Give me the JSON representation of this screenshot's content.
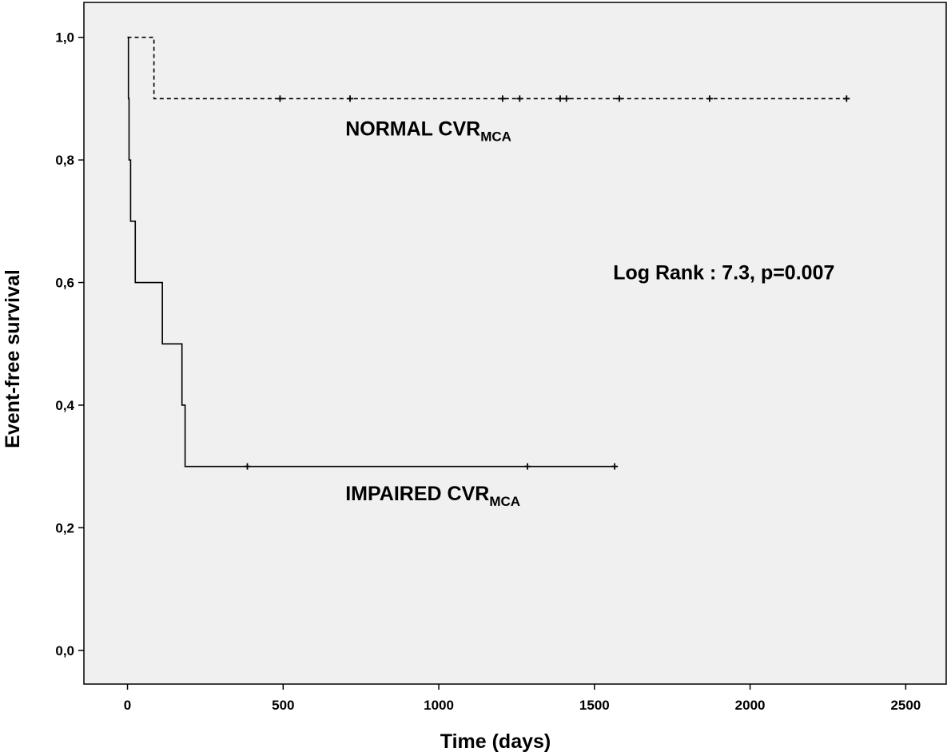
{
  "chart_data": {
    "type": "line",
    "subtype": "kaplan-meier-step",
    "xlabel": "Time (days)",
    "ylabel": "Event-free survival",
    "xlim": [
      -140,
      2630
    ],
    "ylim": [
      -0.055,
      1.057
    ],
    "x_ticks": [
      0,
      500,
      1000,
      1500,
      2000,
      2500
    ],
    "x_tick_labels": [
      "0",
      "500",
      "1000",
      "1500",
      "2000",
      "2500"
    ],
    "y_ticks": [
      0.0,
      0.2,
      0.4,
      0.6,
      0.8,
      1.0
    ],
    "y_tick_labels": [
      "0,0",
      "0,2",
      "0,4",
      "0,6",
      "0,8",
      "1,0"
    ],
    "grid": false,
    "legend": "none",
    "plot_background": "#f0f0f0",
    "series": [
      {
        "name": "NORMAL CVR",
        "name_subscript": "MCA",
        "line_style": "dashed",
        "color": "#000000",
        "steps": [
          [
            0,
            1.0
          ],
          [
            85,
            0.9
          ],
          [
            2310,
            0.9
          ]
        ],
        "censored": [
          [
            490,
            0.9
          ],
          [
            715,
            0.9
          ],
          [
            1205,
            0.9
          ],
          [
            1260,
            0.9
          ],
          [
            1390,
            0.9
          ],
          [
            1410,
            0.9
          ],
          [
            1580,
            0.9
          ],
          [
            1870,
            0.9
          ],
          [
            2310,
            0.9
          ]
        ]
      },
      {
        "name": "IMPAIRED CVR",
        "name_subscript": "MCA",
        "line_style": "solid",
        "color": "#000000",
        "steps": [
          [
            0,
            1.0
          ],
          [
            3,
            0.9
          ],
          [
            5,
            0.8
          ],
          [
            10,
            0.7
          ],
          [
            25,
            0.6
          ],
          [
            112,
            0.5
          ],
          [
            175,
            0.4
          ],
          [
            185,
            0.3
          ],
          [
            1565,
            0.3
          ]
        ],
        "censored": [
          [
            385,
            0.3
          ],
          [
            1285,
            0.3
          ],
          [
            1565,
            0.3
          ]
        ]
      }
    ],
    "annotations": [
      {
        "text": "NORMAL CVR",
        "subscript": "MCA",
        "x": 700,
        "y": 0.84
      },
      {
        "text": "IMPAIRED CVR",
        "subscript": "MCA",
        "x": 700,
        "y": 0.245
      },
      {
        "text": "Log Rank : 7.3, p=0.007",
        "subscript": "",
        "x": 1560,
        "y": 0.605
      }
    ]
  }
}
